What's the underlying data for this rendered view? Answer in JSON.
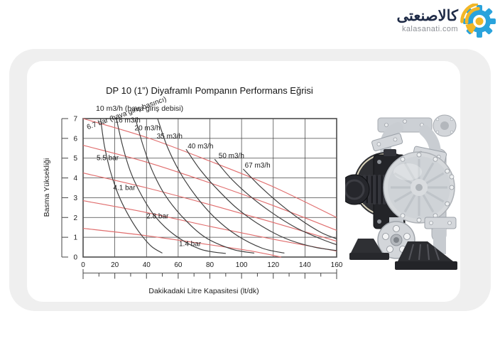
{
  "logo": {
    "brand_arabic": "كالاصنعتى",
    "domain": "kalasanati.com",
    "gear_blue": "#2aa3dc",
    "accent_yellow": "#f2b727",
    "brand_text_color": "#1f2b47",
    "domain_text_color": "#8d9096"
  },
  "chart_data": {
    "type": "line",
    "title": "DP 10 (1”) Diyaframlı Pompanın Performans Eğrisi",
    "top_annotation": "10 m3/h (hava giriş debisi)",
    "xlabel": "Dakikadaki Litre Kapasitesi (lt/dk)",
    "ylabel": "Basma Yüksekliği",
    "xlim": [
      0,
      160
    ],
    "ylim": [
      0,
      7
    ],
    "x_ticks": [
      0,
      20,
      40,
      60,
      80,
      100,
      120,
      140,
      160
    ],
    "x_minor_ticks": [
      10,
      30,
      50,
      70,
      90,
      110,
      130,
      150
    ],
    "y_ticks": [
      0,
      1,
      2,
      3,
      4,
      5,
      6,
      7
    ],
    "grid": true,
    "legend": "inline-labels",
    "colors": {
      "flow": "#3c3c3c",
      "pressure": "#e06d6d",
      "grid": "#454545",
      "border": "#4d4d4d",
      "axis": "#555555",
      "label_text": "#1c1c1c"
    },
    "flow_series": [
      {
        "name": "10 m3/h",
        "points": [
          [
            11,
            7
          ],
          [
            13.5,
            5.6
          ],
          [
            17,
            4.4
          ],
          [
            22,
            3.2
          ],
          [
            28,
            2.2
          ],
          [
            35,
            1.3
          ],
          [
            43,
            0.55
          ],
          [
            50,
            0.2
          ]
        ]
      },
      {
        "name": "16 m3/h",
        "points": [
          [
            21,
            7
          ],
          [
            25,
            5.6
          ],
          [
            30,
            4.3
          ],
          [
            37,
            3.1
          ],
          [
            46,
            2.0
          ],
          [
            58,
            1.1
          ],
          [
            74,
            0.4
          ],
          [
            90,
            0.18
          ]
        ],
        "label": {
          "x": 20,
          "y": 6.8
        }
      },
      {
        "name": "20 m3/h",
        "points": [
          [
            33,
            7
          ],
          [
            38,
            5.6
          ],
          [
            44,
            4.3
          ],
          [
            52,
            3.1
          ],
          [
            63,
            2.0
          ],
          [
            77,
            1.0
          ],
          [
            94,
            0.4
          ],
          [
            108,
            0.2
          ]
        ],
        "label": {
          "x": 32.5,
          "y": 6.4
        }
      },
      {
        "name": "35 m3/h",
        "points": [
          [
            47,
            7
          ],
          [
            53,
            5.6
          ],
          [
            61,
            4.3
          ],
          [
            71,
            3.1
          ],
          [
            83,
            2.0
          ],
          [
            97,
            1.1
          ],
          [
            113,
            0.45
          ],
          [
            127,
            0.2
          ]
        ],
        "label": {
          "x": 46.5,
          "y": 6.0
        }
      },
      {
        "name": "40 m3/h",
        "points": [
          [
            65,
            5.45
          ],
          [
            74,
            4.4
          ],
          [
            85,
            3.4
          ],
          [
            98,
            2.4
          ],
          [
            113,
            1.55
          ],
          [
            129,
            0.9
          ],
          [
            146,
            0.5
          ],
          [
            160,
            0.33
          ]
        ],
        "label": {
          "x": 66,
          "y": 5.5
        }
      },
      {
        "name": "50 m3/h",
        "points": [
          [
            83,
            4.95
          ],
          [
            93,
            4.0
          ],
          [
            105,
            3.1
          ],
          [
            119,
            2.25
          ],
          [
            134,
            1.5
          ],
          [
            149,
            0.95
          ],
          [
            160,
            0.62
          ]
        ],
        "label": {
          "x": 85.5,
          "y": 5.0
        }
      },
      {
        "name": "67 m3/h",
        "points": [
          [
            101,
            4.45
          ],
          [
            112,
            3.55
          ],
          [
            124,
            2.7
          ],
          [
            137,
            1.9
          ],
          [
            150,
            1.25
          ],
          [
            160,
            0.92
          ]
        ],
        "label": {
          "x": 102,
          "y": 4.52
        }
      }
    ],
    "pressure_series": [
      {
        "name": "6.7 bar",
        "points": [
          [
            0,
            7
          ],
          [
            40,
            6.05
          ],
          [
            80,
            4.85
          ],
          [
            120,
            3.55
          ],
          [
            160,
            2.0
          ]
        ],
        "label": {
          "text": "6.7 bar (hava giriş basıncı)",
          "x": 3,
          "y": 6.45,
          "rotate": -20
        }
      },
      {
        "name": "5.5 bar",
        "points": [
          [
            0,
            5.65
          ],
          [
            40,
            4.8
          ],
          [
            80,
            3.75
          ],
          [
            120,
            2.6
          ],
          [
            160,
            1.35
          ]
        ],
        "label": {
          "x": 8.5,
          "y": 4.9
        }
      },
      {
        "name": "4.1 bar",
        "points": [
          [
            0,
            4.25
          ],
          [
            40,
            3.5
          ],
          [
            80,
            2.65
          ],
          [
            120,
            1.75
          ],
          [
            160,
            0.8
          ]
        ],
        "label": {
          "x": 19,
          "y": 3.4
        }
      },
      {
        "name": "2.8 bar",
        "points": [
          [
            0,
            2.85
          ],
          [
            40,
            2.25
          ],
          [
            80,
            1.55
          ],
          [
            120,
            0.9
          ],
          [
            160,
            0.3
          ]
        ],
        "label": {
          "x": 40,
          "y": 1.95
        }
      },
      {
        "name": "1.4 bar",
        "points": [
          [
            0,
            1.45
          ],
          [
            40,
            1.08
          ],
          [
            80,
            0.62
          ],
          [
            105,
            0.32
          ],
          [
            125,
            0
          ]
        ],
        "label": {
          "x": 60.5,
          "y": 0.55
        }
      }
    ]
  },
  "pump_illustration": {
    "body_color": "#d3d6da",
    "dark_color": "#27282c"
  }
}
